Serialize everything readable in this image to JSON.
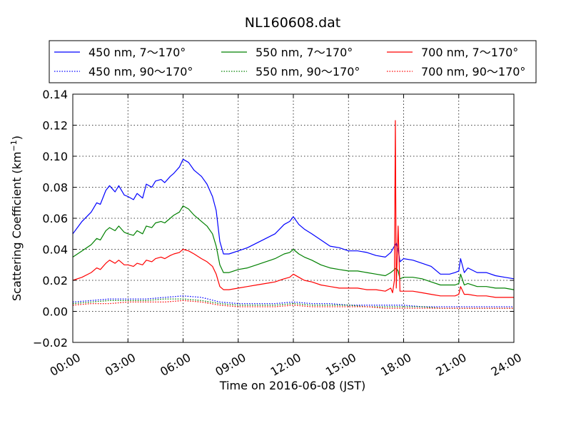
{
  "chart_data": {
    "type": "line",
    "title": "NL160608.dat",
    "xlabel": "Time on 2016-06-08 (JST)",
    "ylabel_main": "Scattering Coefficient (km",
    "ylabel_sup": "−1",
    "ylabel_close": ")",
    "xlim_hours": [
      0,
      24
    ],
    "ylim": [
      -0.02,
      0.14
    ],
    "x_ticks": [
      {
        "value": 0,
        "label": "00:00"
      },
      {
        "value": 3,
        "label": "03:00"
      },
      {
        "value": 6,
        "label": "06:00"
      },
      {
        "value": 9,
        "label": "09:00"
      },
      {
        "value": 12,
        "label": "12:00"
      },
      {
        "value": 15,
        "label": "15:00"
      },
      {
        "value": 18,
        "label": "18:00"
      },
      {
        "value": 21,
        "label": "21:00"
      },
      {
        "value": 24,
        "label": "24:00"
      }
    ],
    "y_ticks": [
      {
        "value": -0.02,
        "label": "−0.02"
      },
      {
        "value": 0.0,
        "label": "0.00"
      },
      {
        "value": 0.02,
        "label": "0.02"
      },
      {
        "value": 0.04,
        "label": "0.04"
      },
      {
        "value": 0.06,
        "label": "0.06"
      },
      {
        "value": 0.08,
        "label": "0.08"
      },
      {
        "value": 0.1,
        "label": "0.10"
      },
      {
        "value": 0.12,
        "label": "0.12"
      },
      {
        "value": 0.14,
        "label": "0.14"
      }
    ],
    "grid": true,
    "legend_position": "top, above plot (3 columns)",
    "series": [
      {
        "name": "450 nm, 7～170°",
        "color": "#0000ff",
        "style": "solid",
        "x": [
          0,
          0.5,
          1,
          1.3,
          1.5,
          1.8,
          2,
          2.3,
          2.5,
          2.8,
          3,
          3.3,
          3.5,
          3.8,
          4,
          4.3,
          4.5,
          4.8,
          5,
          5.3,
          5.5,
          5.8,
          6,
          6.3,
          6.6,
          7,
          7.3,
          7.6,
          7.8,
          8,
          8.2,
          8.5,
          9,
          9.5,
          10,
          10.5,
          11,
          11.5,
          11.8,
          12,
          12.3,
          12.6,
          13,
          13.5,
          14,
          14.5,
          15,
          15.5,
          16,
          16.5,
          17,
          17.3,
          17.5,
          17.6,
          17.7,
          17.8,
          18,
          18.5,
          19,
          19.5,
          20,
          20.5,
          20.8,
          21,
          21.1,
          21.3,
          21.5,
          22,
          22.5,
          23,
          23.5,
          24
        ],
        "y": [
          0.05,
          0.058,
          0.064,
          0.07,
          0.069,
          0.078,
          0.081,
          0.077,
          0.081,
          0.075,
          0.074,
          0.072,
          0.076,
          0.073,
          0.082,
          0.08,
          0.084,
          0.085,
          0.083,
          0.087,
          0.089,
          0.093,
          0.098,
          0.096,
          0.091,
          0.087,
          0.082,
          0.074,
          0.065,
          0.045,
          0.037,
          0.037,
          0.039,
          0.041,
          0.044,
          0.047,
          0.05,
          0.056,
          0.058,
          0.061,
          0.056,
          0.053,
          0.05,
          0.046,
          0.042,
          0.041,
          0.039,
          0.039,
          0.038,
          0.036,
          0.035,
          0.038,
          0.042,
          0.044,
          0.04,
          0.032,
          0.034,
          0.033,
          0.031,
          0.029,
          0.024,
          0.024,
          0.025,
          0.026,
          0.034,
          0.025,
          0.028,
          0.025,
          0.025,
          0.023,
          0.022,
          0.021
        ]
      },
      {
        "name": "550 nm, 7～170°",
        "color": "#008000",
        "style": "solid",
        "x": [
          0,
          0.5,
          1,
          1.3,
          1.5,
          1.8,
          2,
          2.3,
          2.5,
          2.8,
          3,
          3.3,
          3.5,
          3.8,
          4,
          4.3,
          4.5,
          4.8,
          5,
          5.3,
          5.5,
          5.8,
          6,
          6.3,
          6.6,
          7,
          7.3,
          7.6,
          7.8,
          8,
          8.2,
          8.5,
          9,
          9.5,
          10,
          10.5,
          11,
          11.5,
          11.8,
          12,
          12.3,
          12.6,
          13,
          13.5,
          14,
          14.5,
          15,
          15.5,
          16,
          16.5,
          17,
          17.3,
          17.5,
          17.6,
          17.7,
          17.8,
          18,
          18.5,
          19,
          19.5,
          20,
          20.5,
          20.8,
          21,
          21.1,
          21.3,
          21.5,
          22,
          22.5,
          23,
          23.5,
          24
        ],
        "y": [
          0.035,
          0.039,
          0.043,
          0.047,
          0.046,
          0.052,
          0.054,
          0.052,
          0.055,
          0.051,
          0.05,
          0.049,
          0.052,
          0.05,
          0.055,
          0.054,
          0.057,
          0.058,
          0.057,
          0.06,
          0.062,
          0.064,
          0.068,
          0.066,
          0.062,
          0.058,
          0.055,
          0.05,
          0.042,
          0.03,
          0.025,
          0.025,
          0.027,
          0.028,
          0.03,
          0.032,
          0.034,
          0.037,
          0.038,
          0.04,
          0.037,
          0.035,
          0.033,
          0.03,
          0.028,
          0.027,
          0.026,
          0.026,
          0.025,
          0.024,
          0.023,
          0.025,
          0.027,
          0.028,
          0.026,
          0.021,
          0.022,
          0.022,
          0.021,
          0.019,
          0.017,
          0.017,
          0.017,
          0.018,
          0.024,
          0.017,
          0.018,
          0.016,
          0.016,
          0.015,
          0.015,
          0.014
        ]
      },
      {
        "name": "700 nm, 7～170°",
        "color": "#ff0000",
        "style": "solid",
        "x": [
          0,
          0.5,
          1,
          1.3,
          1.5,
          1.8,
          2,
          2.3,
          2.5,
          2.8,
          3,
          3.3,
          3.5,
          3.8,
          4,
          4.3,
          4.5,
          4.8,
          5,
          5.3,
          5.5,
          5.8,
          6,
          6.3,
          6.6,
          7,
          7.3,
          7.6,
          7.8,
          8,
          8.2,
          8.5,
          9,
          9.5,
          10,
          10.5,
          11,
          11.5,
          11.8,
          12,
          12.3,
          12.6,
          13,
          13.5,
          14,
          14.5,
          15,
          15.5,
          16,
          16.5,
          17,
          17.3,
          17.4,
          17.5,
          17.55,
          17.6,
          17.7,
          17.8,
          18,
          18.5,
          19,
          19.5,
          20,
          20.5,
          20.8,
          21,
          21.1,
          21.3,
          21.5,
          22,
          22.5,
          23,
          23.5,
          24
        ],
        "y": [
          0.02,
          0.022,
          0.025,
          0.028,
          0.027,
          0.031,
          0.033,
          0.031,
          0.033,
          0.03,
          0.03,
          0.029,
          0.031,
          0.03,
          0.033,
          0.032,
          0.034,
          0.035,
          0.034,
          0.036,
          0.037,
          0.038,
          0.04,
          0.039,
          0.037,
          0.034,
          0.032,
          0.029,
          0.024,
          0.016,
          0.014,
          0.014,
          0.015,
          0.016,
          0.017,
          0.018,
          0.019,
          0.021,
          0.022,
          0.024,
          0.022,
          0.02,
          0.019,
          0.017,
          0.016,
          0.015,
          0.015,
          0.015,
          0.014,
          0.014,
          0.013,
          0.015,
          0.012,
          0.02,
          0.123,
          0.015,
          0.055,
          0.013,
          0.013,
          0.013,
          0.012,
          0.011,
          0.01,
          0.01,
          0.01,
          0.011,
          0.016,
          0.011,
          0.011,
          0.01,
          0.01,
          0.009,
          0.009,
          0.009
        ]
      },
      {
        "name": "450 nm, 90～170°",
        "color": "#0000ff",
        "style": "dotted",
        "x": [
          0,
          1,
          2,
          3,
          4,
          5,
          6,
          7,
          8,
          9,
          10,
          11,
          12,
          13,
          14,
          15,
          16,
          17,
          17.7,
          18,
          19,
          20,
          21,
          22,
          23,
          24
        ],
        "y": [
          0.006,
          0.007,
          0.008,
          0.008,
          0.008,
          0.009,
          0.01,
          0.009,
          0.006,
          0.005,
          0.005,
          0.005,
          0.006,
          0.005,
          0.005,
          0.004,
          0.004,
          0.004,
          0.004,
          0.004,
          0.003,
          0.003,
          0.003,
          0.003,
          0.003,
          0.003
        ]
      },
      {
        "name": "550 nm, 90～170°",
        "color": "#008000",
        "style": "dotted",
        "x": [
          0,
          1,
          2,
          3,
          4,
          5,
          6,
          7,
          8,
          9,
          10,
          11,
          12,
          13,
          14,
          15,
          16,
          17,
          17.7,
          18,
          19,
          20,
          21,
          22,
          23,
          24
        ],
        "y": [
          0.005,
          0.006,
          0.007,
          0.007,
          0.007,
          0.008,
          0.008,
          0.007,
          0.005,
          0.004,
          0.004,
          0.004,
          0.005,
          0.004,
          0.004,
          0.004,
          0.003,
          0.003,
          0.003,
          0.003,
          0.003,
          0.002,
          0.002,
          0.002,
          0.002,
          0.002
        ]
      },
      {
        "name": "700 nm, 90～170°",
        "color": "#ff0000",
        "style": "dotted",
        "x": [
          0,
          1,
          2,
          3,
          4,
          5,
          6,
          7,
          8,
          9,
          10,
          11,
          12,
          13,
          14,
          15,
          16,
          17,
          17.7,
          18,
          19,
          20,
          21,
          22,
          23,
          24
        ],
        "y": [
          0.004,
          0.005,
          0.005,
          0.006,
          0.006,
          0.006,
          0.007,
          0.006,
          0.004,
          0.003,
          0.003,
          0.003,
          0.004,
          0.003,
          0.003,
          0.003,
          0.003,
          0.002,
          0.002,
          0.002,
          0.002,
          0.002,
          0.002,
          0.002,
          0.002,
          0.002
        ]
      }
    ]
  }
}
